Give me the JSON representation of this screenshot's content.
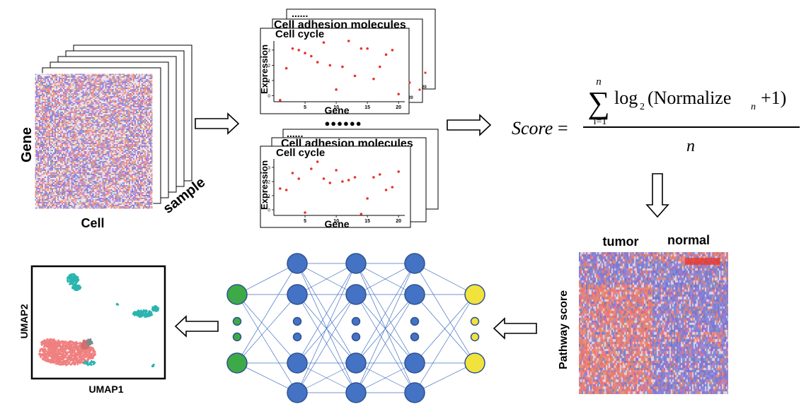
{
  "matrix": {
    "y_label": "Gene",
    "x_label": "Cell",
    "stack_label": "sample"
  },
  "pathway_top": {
    "ellipsis": "......",
    "back_title": "Cell adhesion molecules",
    "front_title": "Cell cycle",
    "y_label": "Expression",
    "x_label": "Gene",
    "ticks": [
      "5",
      "10",
      "15",
      "20"
    ],
    "y_ticks": [
      "0",
      "1",
      "2",
      "3"
    ],
    "mini_tick": "20"
  },
  "pathway_bottom": {
    "ellipsis": "......",
    "back_title": "Cell adhesion molecules",
    "front_title": "Cell cycle",
    "y_label": "Expression",
    "x_label": "Gene",
    "ticks": [
      "5",
      "10",
      "15",
      "20"
    ],
    "y_ticks": [
      "0",
      "1",
      "2",
      "3"
    ],
    "mini_tick": "20"
  },
  "chart_data": [
    {
      "type": "scatter",
      "title": "Cell cycle",
      "xlabel": "Gene",
      "ylabel": "Expression",
      "xlim": [
        0,
        21
      ],
      "ylim": [
        -0.4,
        3.6
      ],
      "x": [
        1,
        2,
        3,
        4,
        5,
        6,
        7,
        8,
        9,
        10,
        11,
        12,
        13,
        14,
        15,
        16,
        17,
        18,
        19,
        20
      ],
      "y": [
        -0.3,
        1.8,
        3.1,
        3.0,
        2.8,
        2.6,
        2.2,
        3.5,
        2.0,
        0.4,
        1.9,
        3.6,
        1.3,
        3.1,
        3.1,
        1.1,
        1.9,
        2.7,
        3.0,
        0.1
      ],
      "color": "#e8332a"
    },
    {
      "type": "scatter",
      "title": "Cell cycle",
      "xlabel": "Gene",
      "ylabel": "Expression",
      "xlim": [
        0,
        21
      ],
      "ylim": [
        -0.4,
        3.6
      ],
      "x": [
        1,
        2,
        3,
        4,
        5,
        6,
        7,
        8,
        9,
        10,
        11,
        12,
        13,
        14,
        15,
        16,
        17,
        18,
        19,
        20
      ],
      "y": [
        1.5,
        1.4,
        2.6,
        2.2,
        -0.2,
        2.9,
        3.4,
        2.2,
        1.9,
        2.8,
        2.0,
        2.1,
        2.3,
        -0.3,
        0.8,
        2.3,
        2.5,
        1.4,
        1.6,
        2.7
      ],
      "color": "#e8332a"
    }
  ],
  "formula": {
    "score": "Score",
    "equals": "=",
    "sum_top": "n",
    "sum_bottom": "i=1",
    "log": "log",
    "log_base": "2",
    "inner": "(Normalize",
    "sub": "n",
    "tail": "+1)",
    "denominator": "n"
  },
  "dots": "●●●●●●",
  "heatmap": {
    "label_tumor": "tumor",
    "label_normal": "normal",
    "y_label": "Pathway score"
  },
  "umap": {
    "xlabel": "UMAP1",
    "ylabel": "UMAP2"
  },
  "colors": {
    "node_blue": "#4472c4",
    "node_green": "#3daa47",
    "node_yellow": "#f2e23c",
    "edge": "#4472c4",
    "tumor_cluster": "#f08080",
    "cyan_cluster": "#2ab5b0",
    "red_point": "#e8332a",
    "heat_red": "#e2716a",
    "heat_blue": "#7073c8"
  }
}
